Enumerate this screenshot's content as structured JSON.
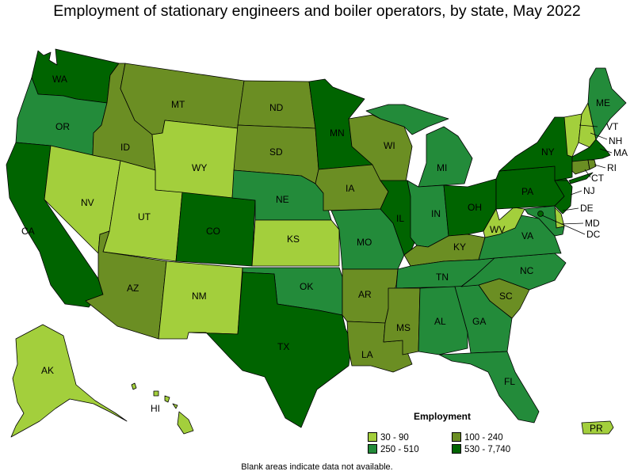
{
  "title": "Employment of stationary engineers and boiler operators, by state, May 2022",
  "note": "Blank areas indicate data not available.",
  "legend": {
    "title": "Employment",
    "items": [
      {
        "label": "30 - 90",
        "color": "#a3cf3c"
      },
      {
        "label": "100 - 240",
        "color": "#6b8e23"
      },
      {
        "label": "250 - 510",
        "color": "#238b3a"
      },
      {
        "label": "530 - 7,740",
        "color": "#006400"
      }
    ]
  },
  "states": {
    "WA": {
      "label": "WA",
      "class": 3
    },
    "OR": {
      "label": "OR",
      "class": 2
    },
    "CA": {
      "label": "CA",
      "class": 3
    },
    "NV": {
      "label": "NV",
      "class": 0
    },
    "ID": {
      "label": "ID",
      "class": 1
    },
    "MT": {
      "label": "MT",
      "class": 1
    },
    "WY": {
      "label": "WY",
      "class": 0
    },
    "UT": {
      "label": "UT",
      "class": 0
    },
    "AZ": {
      "label": "AZ",
      "class": 1
    },
    "CO": {
      "label": "CO",
      "class": 3
    },
    "NM": {
      "label": "NM",
      "class": 0
    },
    "ND": {
      "label": "ND",
      "class": 1
    },
    "SD": {
      "label": "SD",
      "class": 1
    },
    "NE": {
      "label": "NE",
      "class": 2
    },
    "KS": {
      "label": "KS",
      "class": 0
    },
    "OK": {
      "label": "OK",
      "class": 2
    },
    "TX": {
      "label": "TX",
      "class": 3
    },
    "MN": {
      "label": "MN",
      "class": 3
    },
    "IA": {
      "label": "IA",
      "class": 1
    },
    "MO": {
      "label": "MO",
      "class": 2
    },
    "AR": {
      "label": "AR",
      "class": 1
    },
    "LA": {
      "label": "LA",
      "class": 1
    },
    "WI": {
      "label": "WI",
      "class": 1
    },
    "IL": {
      "label": "IL",
      "class": 3
    },
    "MI": {
      "label": "MI",
      "class": 2
    },
    "IN": {
      "label": "IN",
      "class": 2
    },
    "OH": {
      "label": "OH",
      "class": 3
    },
    "KY": {
      "label": "KY",
      "class": 1
    },
    "TN": {
      "label": "TN",
      "class": 2
    },
    "MS": {
      "label": "MS",
      "class": 1
    },
    "AL": {
      "label": "AL",
      "class": 2
    },
    "GA": {
      "label": "GA",
      "class": 2
    },
    "FL": {
      "label": "FL",
      "class": 2
    },
    "SC": {
      "label": "SC",
      "class": 1
    },
    "NC": {
      "label": "NC",
      "class": 2
    },
    "VA": {
      "label": "VA",
      "class": 2
    },
    "WV": {
      "label": "WV",
      "class": 0
    },
    "PA": {
      "label": "PA",
      "class": 3
    },
    "NY": {
      "label": "NY",
      "class": 3
    },
    "NJ": {
      "label": "NJ",
      "class": 3
    },
    "DE": {
      "label": "DE",
      "class": 0
    },
    "MD": {
      "label": "MD",
      "class": 2
    },
    "DC": {
      "label": "DC",
      "class": 3
    },
    "CT": {
      "label": "CT",
      "class": 1
    },
    "RI": {
      "label": "RI",
      "class": 1
    },
    "MA": {
      "label": "MA",
      "class": 3
    },
    "VT": {
      "label": "VT",
      "class": 0
    },
    "NH": {
      "label": "NH",
      "class": 0
    },
    "ME": {
      "label": "ME",
      "class": 2
    },
    "AK": {
      "label": "AK",
      "class": 0
    },
    "HI": {
      "label": "HI",
      "class": 0
    },
    "PR": {
      "label": "PR",
      "class": 0
    }
  }
}
